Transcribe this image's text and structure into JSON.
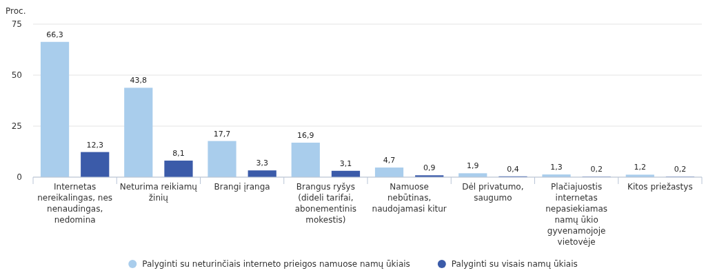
{
  "chart_data": {
    "type": "bar",
    "ylabel": "Proc.",
    "categories": [
      "Internetas nereikalingas, nes nenaudingas, nedomina",
      "Neturima reikiamų žinių",
      "Brangi įranga",
      "Brangus ryšys (dideli tarifai, abonementinis mokestis)",
      "Namuose nebūtinas, naudojamasi kitur",
      "Dėl privatumo, saugumo",
      "Plačiajuostis internetas nepasiekiamas namų ūkio gyvenamojoje vietovėje",
      "Kitos priežastys"
    ],
    "series": [
      {
        "name": "Palyginti su neturinčiais interneto prieigos namuose namų ūkiais",
        "color": "#a9cdec",
        "values": [
          66.3,
          43.8,
          17.7,
          16.9,
          4.7,
          1.9,
          1.3,
          1.2
        ],
        "value_labels": [
          "66,3",
          "43,8",
          "17,7",
          "16,9",
          "4,7",
          "1,9",
          "1,3",
          "1,2"
        ]
      },
      {
        "name": "Palyginti su visais namų ūkiais",
        "color": "#3b5ba9",
        "values": [
          12.3,
          8.1,
          3.3,
          3.1,
          0.9,
          0.4,
          0.2,
          0.2
        ],
        "value_labels": [
          "12,3",
          "8,1",
          "3,3",
          "3,1",
          "0,9",
          "0,4",
          "0,2",
          "0,2"
        ]
      }
    ],
    "ylim": [
      0,
      75
    ],
    "yticks": [
      0,
      25,
      50,
      75
    ],
    "grid": "y",
    "legend": "bottom"
  }
}
